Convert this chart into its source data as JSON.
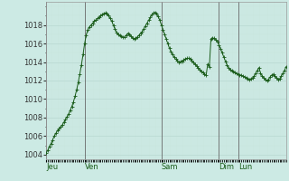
{
  "bg_color": "#cceae4",
  "line_color": "#1a5c1a",
  "marker_color": "#1a5c1a",
  "grid_major_color": "#b8d8d0",
  "grid_minor_color": "#c8e4dc",
  "vline_color": "#666666",
  "ylabel_color": "#333333",
  "xlabel_color": "#1a5c1a",
  "ylim": [
    1003.5,
    1020.5
  ],
  "yticks": [
    1004,
    1006,
    1008,
    1010,
    1012,
    1014,
    1016,
    1018
  ],
  "day_labels": [
    "Jeu",
    "Ven",
    "Sam",
    "Dim",
    "Lun"
  ],
  "tick_fontsize": 6,
  "pressure_data": [
    1004.2,
    1004.5,
    1004.9,
    1005.2,
    1005.6,
    1006.0,
    1006.3,
    1006.6,
    1006.8,
    1007.0,
    1007.2,
    1007.5,
    1007.8,
    1008.1,
    1008.4,
    1008.8,
    1009.2,
    1009.7,
    1010.3,
    1011.0,
    1011.8,
    1012.7,
    1013.7,
    1014.8,
    1016.0,
    1016.9,
    1017.5,
    1017.8,
    1018.0,
    1018.2,
    1018.4,
    1018.55,
    1018.7,
    1018.85,
    1019.0,
    1019.15,
    1019.25,
    1019.3,
    1019.2,
    1019.0,
    1018.7,
    1018.4,
    1017.95,
    1017.55,
    1017.2,
    1017.0,
    1016.85,
    1016.75,
    1016.65,
    1016.7,
    1016.9,
    1017.1,
    1017.0,
    1016.8,
    1016.6,
    1016.5,
    1016.55,
    1016.7,
    1016.9,
    1017.1,
    1017.3,
    1017.6,
    1017.9,
    1018.2,
    1018.5,
    1018.8,
    1019.1,
    1019.3,
    1019.35,
    1019.2,
    1018.9,
    1018.5,
    1018.0,
    1017.5,
    1017.0,
    1016.5,
    1016.0,
    1015.5,
    1015.1,
    1014.8,
    1014.5,
    1014.3,
    1014.15,
    1014.0,
    1014.05,
    1014.1,
    1014.2,
    1014.35,
    1014.4,
    1014.4,
    1014.3,
    1014.15,
    1014.0,
    1013.8,
    1013.6,
    1013.4,
    1013.2,
    1013.0,
    1012.85,
    1012.7,
    1012.6,
    1013.8,
    1013.5,
    1016.5,
    1016.6,
    1016.55,
    1016.4,
    1016.2,
    1015.85,
    1015.45,
    1015.0,
    1014.55,
    1014.1,
    1013.7,
    1013.4,
    1013.2,
    1013.05,
    1012.95,
    1012.85,
    1012.75,
    1012.65,
    1012.6,
    1012.55,
    1012.5,
    1012.4,
    1012.3,
    1012.2,
    1012.1,
    1012.2,
    1012.3,
    1012.5,
    1012.8,
    1013.1,
    1013.4,
    1012.8,
    1012.5,
    1012.3,
    1012.1,
    1012.0,
    1012.1,
    1012.4,
    1012.6,
    1012.7,
    1012.5,
    1012.3,
    1012.1,
    1012.2,
    1012.5,
    1012.8,
    1013.1,
    1013.5
  ]
}
